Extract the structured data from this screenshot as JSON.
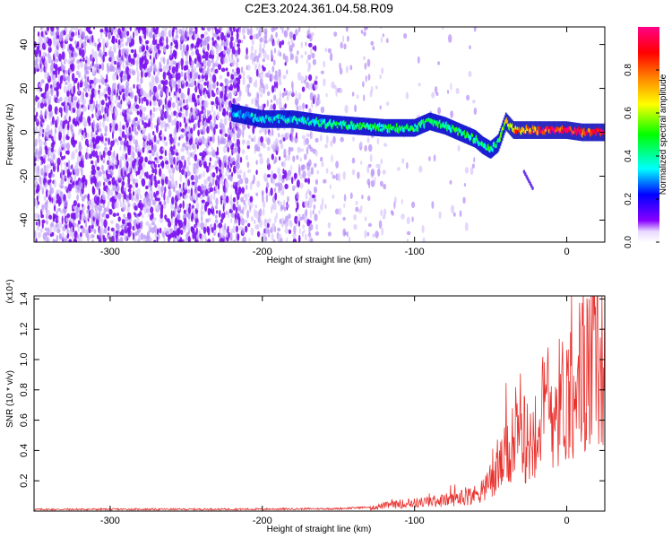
{
  "title": "C2E3.2024.361.04.58.R09",
  "chart_data": [
    {
      "type": "heatmap",
      "xlabel": "Height of straight line (km)",
      "ylabel": "Frequency (Hz)",
      "xlim": [
        -350,
        25
      ],
      "ylim": [
        -50,
        48
      ],
      "xticks": [
        "-300",
        "-200",
        "-100",
        "0"
      ],
      "yticks": [
        "-40",
        "-20",
        "0",
        "20",
        "40"
      ],
      "colorbar": {
        "label": "Normalized spectral amplitude",
        "range": [
          0,
          1
        ],
        "ticks": [
          "0.0",
          "0.2",
          "0.4",
          "0.6",
          "0.8"
        ],
        "colors": [
          "#ffffff",
          "#8800ff",
          "#0000ff",
          "#00ffff",
          "#00ff00",
          "#ffff00",
          "#ff8800",
          "#ff0000",
          "#ff00aa"
        ]
      },
      "signal_track": {
        "x": [
          -220,
          -200,
          -180,
          -160,
          -140,
          -120,
          -100,
          -90,
          -80,
          -70,
          -60,
          -55,
          -50,
          -45,
          -40,
          -35,
          -30,
          -20,
          -10,
          0,
          10,
          25
        ],
        "frequency_hz": [
          9,
          6,
          6,
          4,
          3,
          2,
          2,
          5,
          3,
          0,
          -3,
          -6,
          -8,
          -5,
          5,
          1,
          1,
          1,
          1,
          1,
          0,
          0
        ],
        "amplitude": [
          0.3,
          0.35,
          0.35,
          0.4,
          0.45,
          0.45,
          0.45,
          0.45,
          0.45,
          0.45,
          0.45,
          0.45,
          0.45,
          0.45,
          0.6,
          0.7,
          0.75,
          0.85,
          0.9,
          0.95,
          0.95,
          0.95
        ]
      },
      "extra_trace": {
        "x": [
          -28,
          -22
        ],
        "frequency_hz": [
          -18,
          -26
        ],
        "amplitude": 0.15
      }
    },
    {
      "type": "line",
      "xlabel": "Height of straight line (km)",
      "ylabel": "SNR (10 * v/v)",
      "multiplier_label": "(x10⁴)",
      "xlim": [
        -350,
        25
      ],
      "ylim": [
        0,
        1.42
      ],
      "xticks": [
        "-300",
        "-200",
        "-100",
        "0"
      ],
      "yticks": [
        "0.2",
        "0.4",
        "0.6",
        "0.8",
        "1.0",
        "1.2",
        "1.4"
      ],
      "color": "#e8322e",
      "series": [
        {
          "x": [
            -350,
            -300,
            -250,
            -200,
            -150,
            -130,
            -120,
            -100,
            -80,
            -60,
            -50,
            -45,
            -40,
            -35,
            -30,
            -25,
            -20,
            -15,
            -10,
            -5,
            0,
            5,
            10,
            15,
            20,
            25
          ],
          "values": [
            0.005,
            0.006,
            0.006,
            0.007,
            0.01,
            0.02,
            0.04,
            0.06,
            0.08,
            0.12,
            0.2,
            0.3,
            0.4,
            0.45,
            0.55,
            0.5,
            0.6,
            0.7,
            0.75,
            0.8,
            0.85,
            0.95,
            1.0,
            1.05,
            1.1,
            1.15
          ]
        }
      ]
    }
  ]
}
